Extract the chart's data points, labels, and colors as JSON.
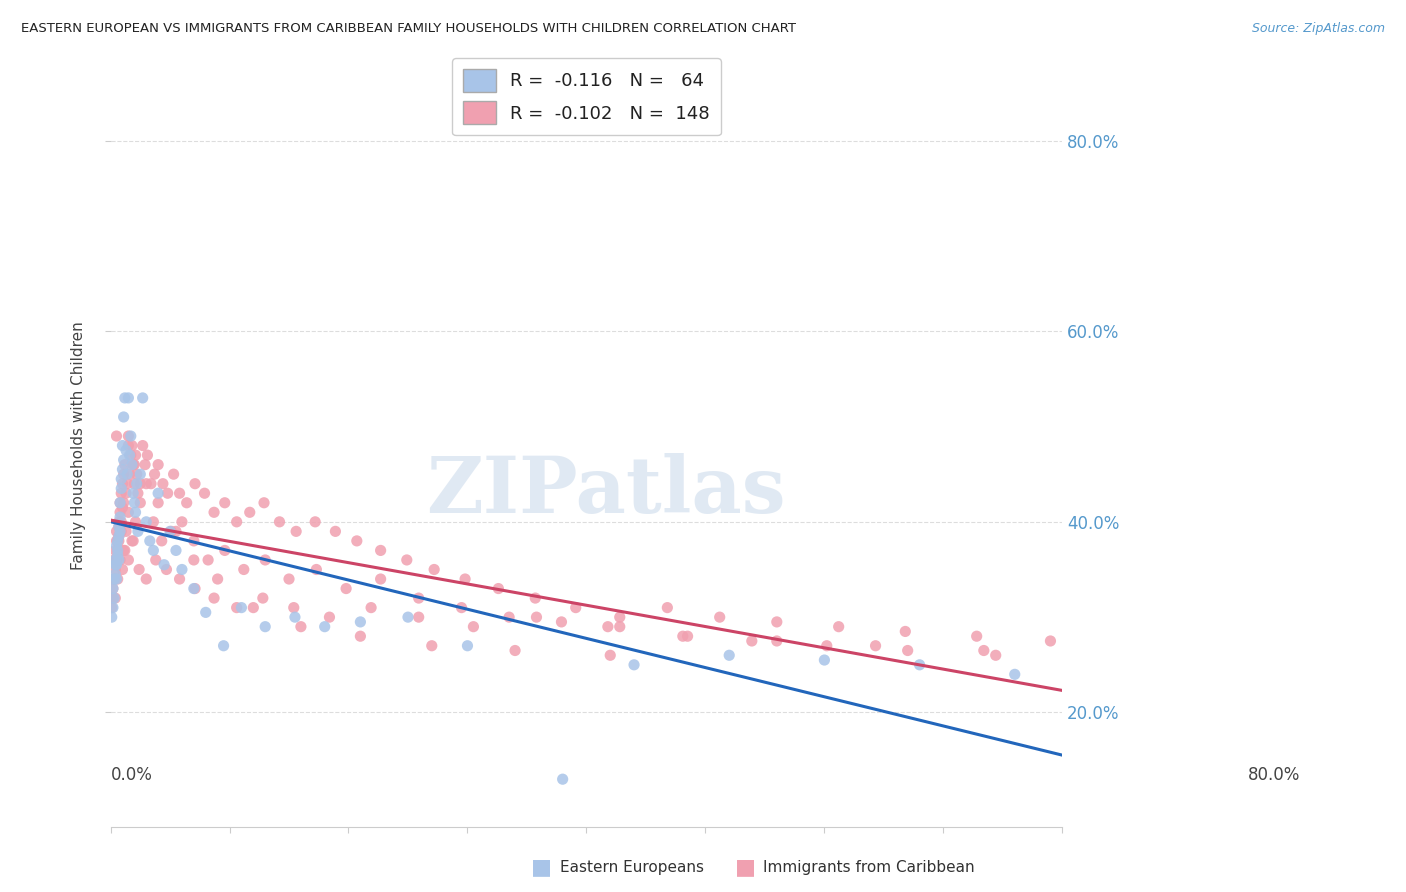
{
  "title": "EASTERN EUROPEAN VS IMMIGRANTS FROM CARIBBEAN FAMILY HOUSEHOLDS WITH CHILDREN CORRELATION CHART",
  "source": "Source: ZipAtlas.com",
  "ylabel": "Family Households with Children",
  "ytick_values": [
    0.2,
    0.4,
    0.6,
    0.8
  ],
  "xlim": [
    0.0,
    0.8
  ],
  "ylim": [
    0.08,
    0.88
  ],
  "blue_scatter_color": "#a8c4e8",
  "pink_scatter_color": "#f0a0b0",
  "blue_line_color": "#2266bb",
  "pink_line_color": "#cc4466",
  "watermark": "ZIPatlas",
  "background_color": "#ffffff",
  "grid_color": "#dddddd",
  "blue_R": -0.116,
  "blue_N": 64,
  "pink_R": -0.102,
  "pink_N": 148,
  "blue_x": [
    0.001,
    0.002,
    0.002,
    0.003,
    0.003,
    0.004,
    0.004,
    0.004,
    0.005,
    0.005,
    0.005,
    0.006,
    0.006,
    0.006,
    0.007,
    0.007,
    0.007,
    0.008,
    0.008,
    0.008,
    0.009,
    0.009,
    0.01,
    0.01,
    0.011,
    0.011,
    0.012,
    0.013,
    0.014,
    0.015,
    0.016,
    0.017,
    0.018,
    0.019,
    0.02,
    0.021,
    0.022,
    0.023,
    0.025,
    0.027,
    0.03,
    0.033,
    0.036,
    0.04,
    0.045,
    0.05,
    0.055,
    0.06,
    0.07,
    0.08,
    0.095,
    0.11,
    0.13,
    0.155,
    0.18,
    0.21,
    0.25,
    0.3,
    0.38,
    0.44,
    0.52,
    0.6,
    0.68,
    0.76
  ],
  "blue_y": [
    0.3,
    0.31,
    0.33,
    0.34,
    0.32,
    0.355,
    0.345,
    0.36,
    0.375,
    0.355,
    0.34,
    0.365,
    0.38,
    0.37,
    0.385,
    0.395,
    0.36,
    0.405,
    0.39,
    0.42,
    0.435,
    0.445,
    0.455,
    0.48,
    0.51,
    0.465,
    0.53,
    0.475,
    0.45,
    0.53,
    0.47,
    0.49,
    0.46,
    0.43,
    0.42,
    0.41,
    0.44,
    0.39,
    0.45,
    0.53,
    0.4,
    0.38,
    0.37,
    0.43,
    0.355,
    0.39,
    0.37,
    0.35,
    0.33,
    0.305,
    0.27,
    0.31,
    0.29,
    0.3,
    0.29,
    0.295,
    0.3,
    0.27,
    0.13,
    0.25,
    0.26,
    0.255,
    0.25,
    0.24
  ],
  "pink_x": [
    0.001,
    0.002,
    0.002,
    0.003,
    0.003,
    0.004,
    0.004,
    0.005,
    0.005,
    0.005,
    0.006,
    0.006,
    0.007,
    0.007,
    0.007,
    0.008,
    0.008,
    0.009,
    0.009,
    0.01,
    0.01,
    0.011,
    0.011,
    0.012,
    0.013,
    0.014,
    0.015,
    0.016,
    0.017,
    0.018,
    0.019,
    0.02,
    0.021,
    0.022,
    0.023,
    0.025,
    0.027,
    0.029,
    0.031,
    0.034,
    0.037,
    0.04,
    0.044,
    0.048,
    0.053,
    0.058,
    0.064,
    0.071,
    0.079,
    0.087,
    0.096,
    0.106,
    0.117,
    0.129,
    0.142,
    0.156,
    0.172,
    0.189,
    0.207,
    0.227,
    0.249,
    0.272,
    0.298,
    0.326,
    0.357,
    0.391,
    0.428,
    0.468,
    0.512,
    0.56,
    0.612,
    0.668,
    0.728,
    0.79,
    0.003,
    0.005,
    0.007,
    0.009,
    0.011,
    0.013,
    0.015,
    0.018,
    0.021,
    0.025,
    0.03,
    0.036,
    0.043,
    0.051,
    0.06,
    0.07,
    0.082,
    0.096,
    0.112,
    0.13,
    0.15,
    0.173,
    0.198,
    0.227,
    0.259,
    0.295,
    0.335,
    0.379,
    0.428,
    0.481,
    0.539,
    0.602,
    0.67,
    0.744,
    0.004,
    0.006,
    0.008,
    0.01,
    0.012,
    0.015,
    0.019,
    0.024,
    0.03,
    0.038,
    0.047,
    0.058,
    0.071,
    0.087,
    0.106,
    0.128,
    0.154,
    0.184,
    0.219,
    0.259,
    0.305,
    0.358,
    0.418,
    0.485,
    0.56,
    0.643,
    0.734,
    0.005,
    0.015,
    0.02,
    0.04,
    0.055,
    0.07,
    0.09,
    0.12,
    0.16,
    0.21,
    0.27,
    0.34,
    0.42
  ],
  "pink_y": [
    0.31,
    0.33,
    0.32,
    0.34,
    0.36,
    0.35,
    0.37,
    0.38,
    0.36,
    0.39,
    0.37,
    0.38,
    0.395,
    0.4,
    0.385,
    0.41,
    0.42,
    0.39,
    0.43,
    0.415,
    0.44,
    0.45,
    0.42,
    0.46,
    0.43,
    0.44,
    0.49,
    0.45,
    0.47,
    0.48,
    0.46,
    0.44,
    0.47,
    0.45,
    0.43,
    0.44,
    0.48,
    0.46,
    0.47,
    0.44,
    0.45,
    0.46,
    0.44,
    0.43,
    0.45,
    0.43,
    0.42,
    0.44,
    0.43,
    0.41,
    0.42,
    0.4,
    0.41,
    0.42,
    0.4,
    0.39,
    0.4,
    0.39,
    0.38,
    0.37,
    0.36,
    0.35,
    0.34,
    0.33,
    0.32,
    0.31,
    0.3,
    0.31,
    0.3,
    0.295,
    0.29,
    0.285,
    0.28,
    0.275,
    0.34,
    0.36,
    0.38,
    0.4,
    0.37,
    0.39,
    0.41,
    0.38,
    0.4,
    0.42,
    0.44,
    0.4,
    0.38,
    0.39,
    0.4,
    0.38,
    0.36,
    0.37,
    0.35,
    0.36,
    0.34,
    0.35,
    0.33,
    0.34,
    0.32,
    0.31,
    0.3,
    0.295,
    0.29,
    0.28,
    0.275,
    0.27,
    0.265,
    0.26,
    0.32,
    0.34,
    0.36,
    0.35,
    0.37,
    0.36,
    0.38,
    0.35,
    0.34,
    0.36,
    0.35,
    0.34,
    0.33,
    0.32,
    0.31,
    0.32,
    0.31,
    0.3,
    0.31,
    0.3,
    0.29,
    0.3,
    0.29,
    0.28,
    0.275,
    0.27,
    0.265,
    0.49,
    0.48,
    0.46,
    0.42,
    0.39,
    0.36,
    0.34,
    0.31,
    0.29,
    0.28,
    0.27,
    0.265,
    0.26
  ]
}
